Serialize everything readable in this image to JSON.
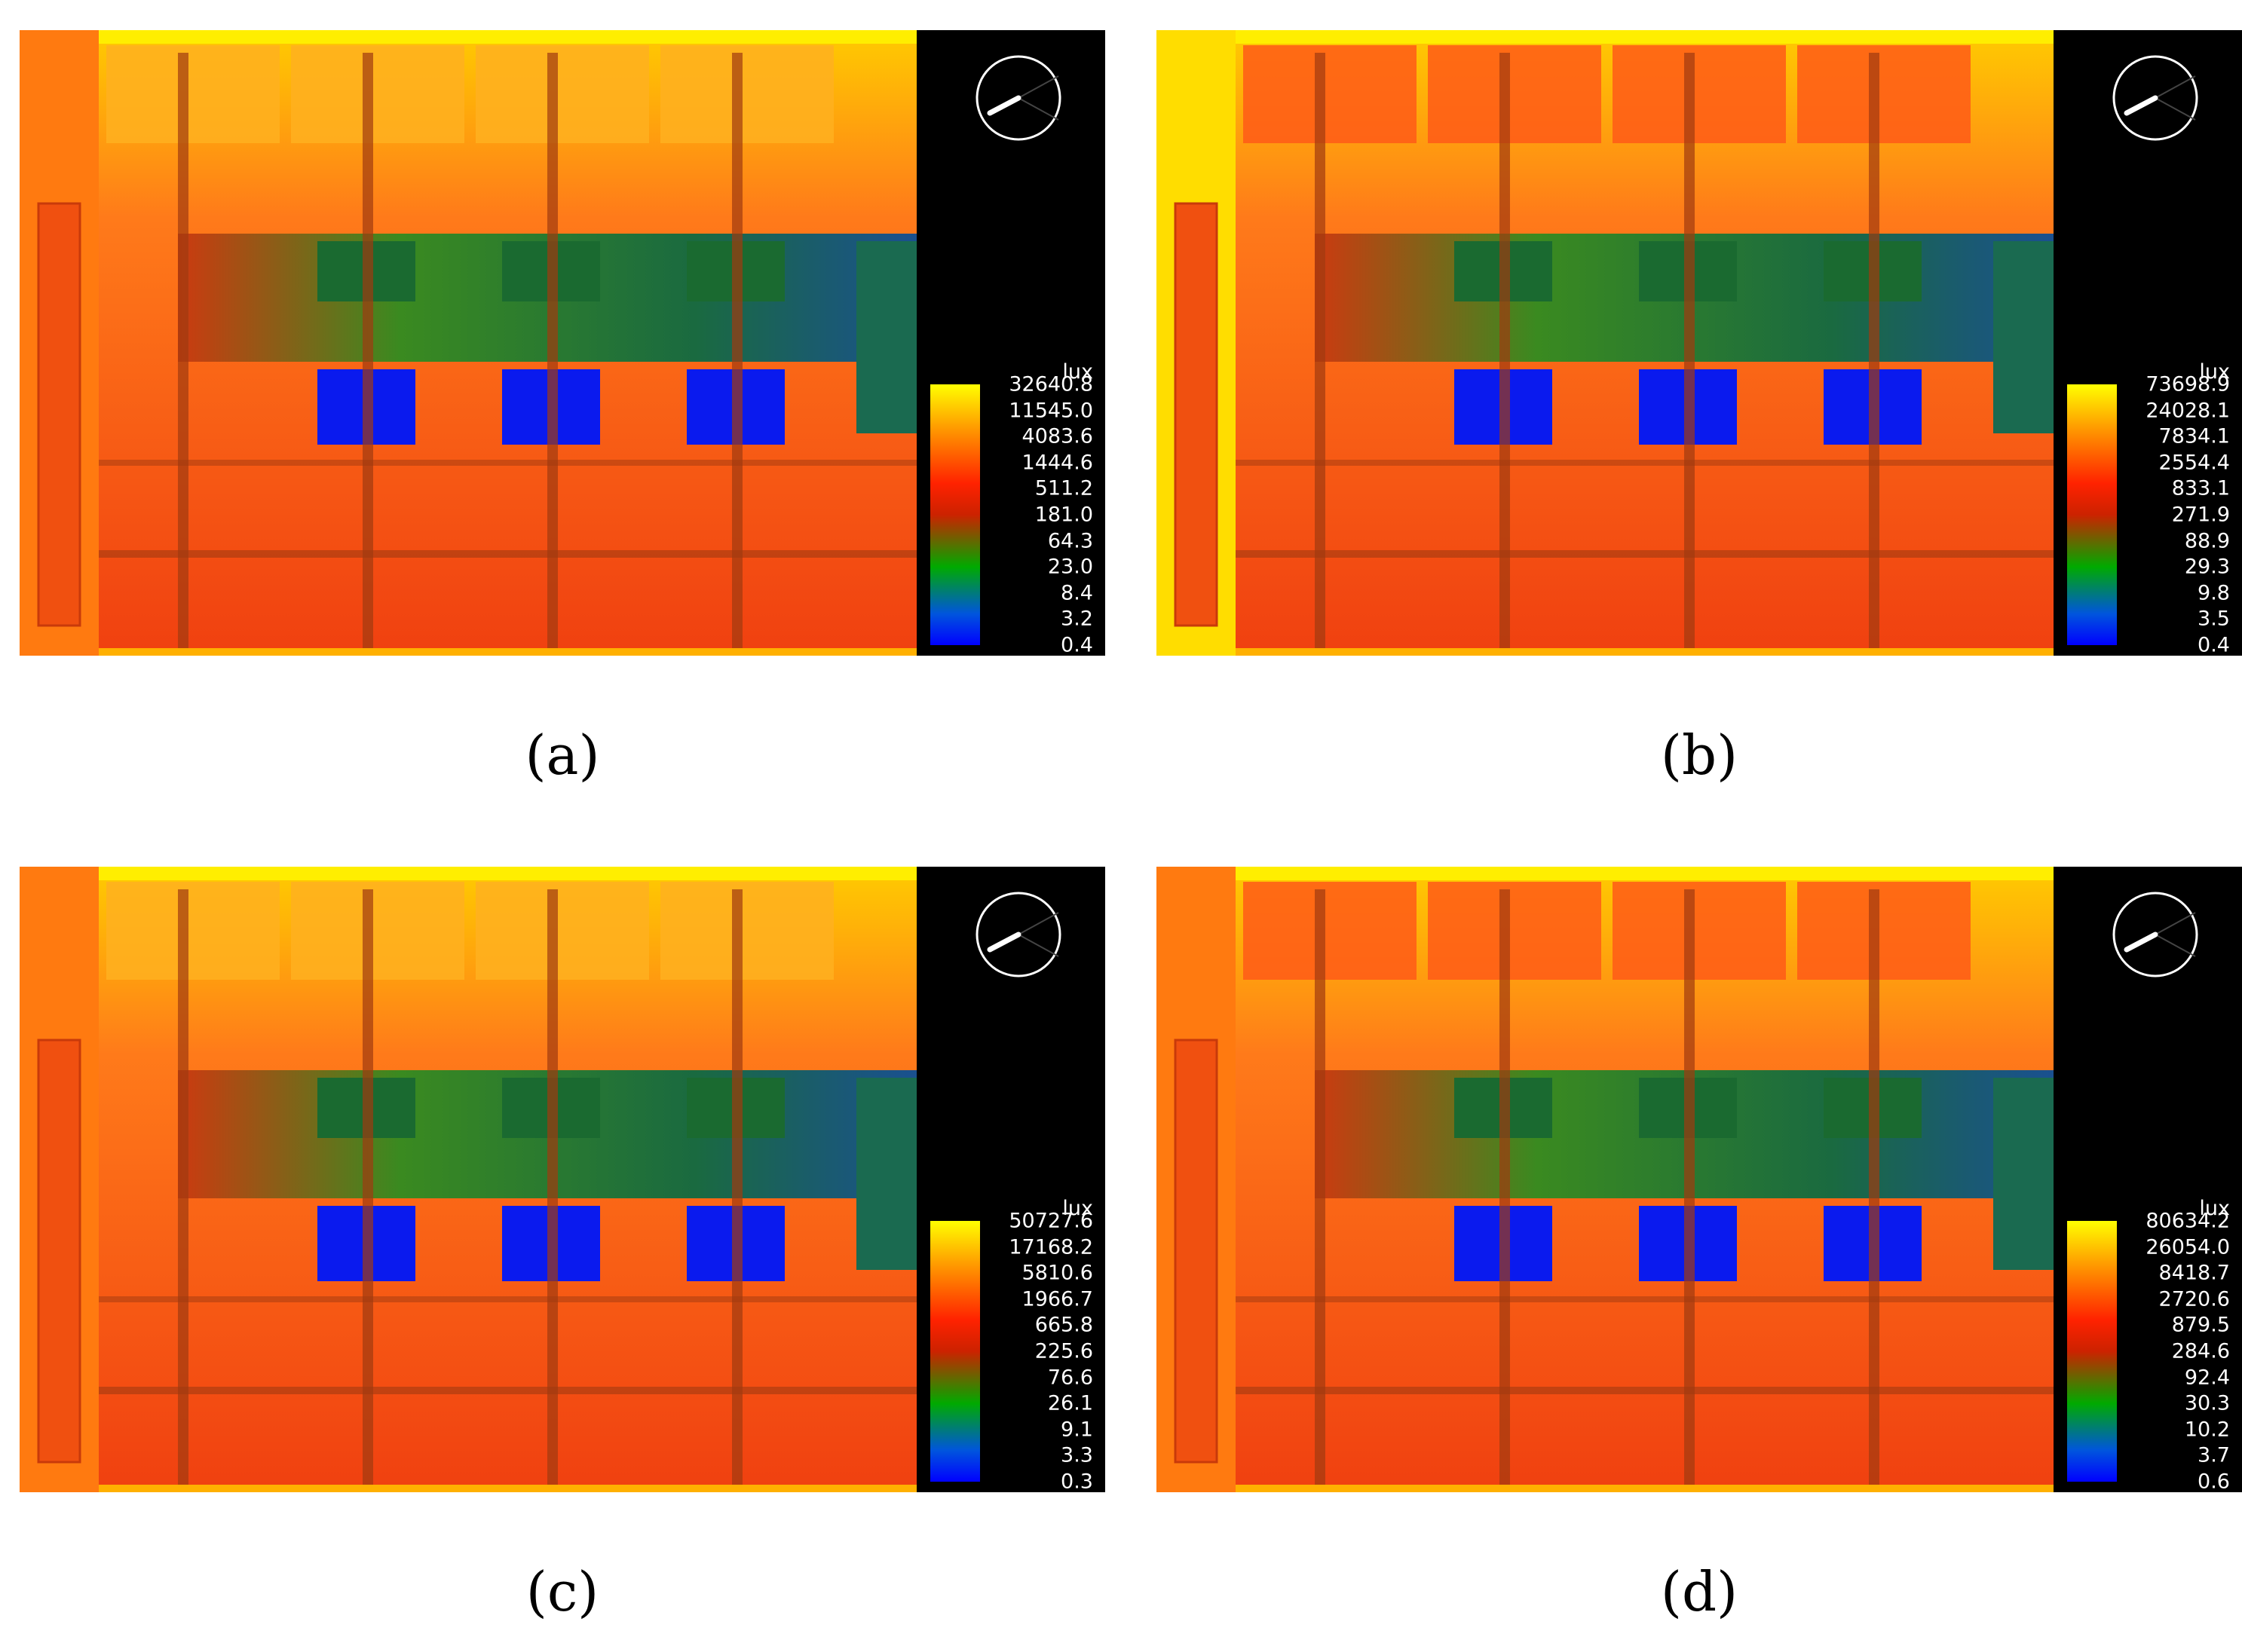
{
  "chart_data": [
    {
      "type": "heatmap",
      "label": "(a)",
      "colorbar_unit": "lux",
      "scale": "log",
      "colorbar_ticks": [
        "32640.8",
        "11545.0",
        "4083.6",
        "1444.6",
        "511.2",
        "181.0",
        "64.3",
        "23.0",
        "8.4",
        "3.2",
        "0.4"
      ],
      "colors": {
        "top": "#ffff00",
        "high": "#ff3300",
        "mid": "#00aa00",
        "low": "#0000ff"
      }
    },
    {
      "type": "heatmap",
      "label": "(b)",
      "colorbar_unit": "lux",
      "scale": "log",
      "colorbar_ticks": [
        "73698.9",
        "24028.1",
        "7834.1",
        "2554.4",
        "833.1",
        "271.9",
        "88.9",
        "29.3",
        "9.8",
        "3.5",
        "0.4"
      ],
      "colors": {
        "top": "#ffff00",
        "high": "#ff3300",
        "mid": "#00aa00",
        "low": "#0000ff"
      }
    },
    {
      "type": "heatmap",
      "label": "(c)",
      "colorbar_unit": "lux",
      "scale": "log",
      "colorbar_ticks": [
        "50727.6",
        "17168.2",
        "5810.6",
        "1966.7",
        "665.8",
        "225.6",
        "76.6",
        "26.1",
        "9.1",
        "3.3",
        "0.3"
      ],
      "colors": {
        "top": "#ffff00",
        "high": "#ff3300",
        "mid": "#00aa00",
        "low": "#0000ff"
      }
    },
    {
      "type": "heatmap",
      "label": "(d)",
      "colorbar_unit": "lux",
      "scale": "log",
      "colorbar_ticks": [
        "80634.2",
        "26054.0",
        "8418.7",
        "2720.6",
        "879.5",
        "284.6",
        "92.4",
        "30.3",
        "10.2",
        "3.7",
        "0.6"
      ],
      "colors": {
        "top": "#ffff00",
        "high": "#ff3300",
        "mid": "#00aa00",
        "low": "#0000ff"
      }
    }
  ]
}
